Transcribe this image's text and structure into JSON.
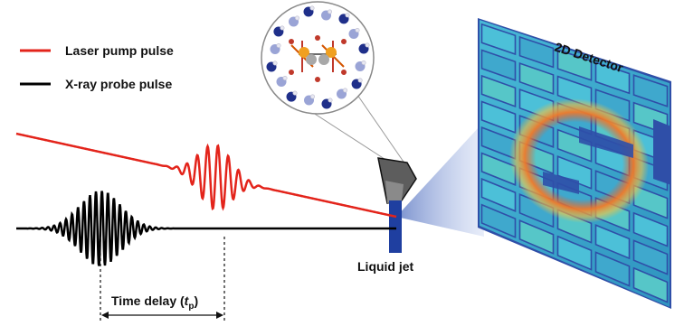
{
  "legend": {
    "laser": {
      "label": "Laser pump pulse",
      "color": "#e3241b"
    },
    "xray": {
      "label": "X-ray probe pulse",
      "color": "#000000"
    }
  },
  "labels": {
    "detector": "2D Detector",
    "liquid_jet": "Liquid jet",
    "time_delay_prefix": "Time delay (",
    "time_delay_symbol": "t",
    "time_delay_subscript": "p",
    "time_delay_suffix": ")"
  },
  "colors": {
    "detector_frame": "#2f4fa8",
    "detector_fill": "#3aa7c9",
    "ring": "#e85a2a",
    "jet": "#1f3fa0",
    "beam": "#5a78c8"
  }
}
